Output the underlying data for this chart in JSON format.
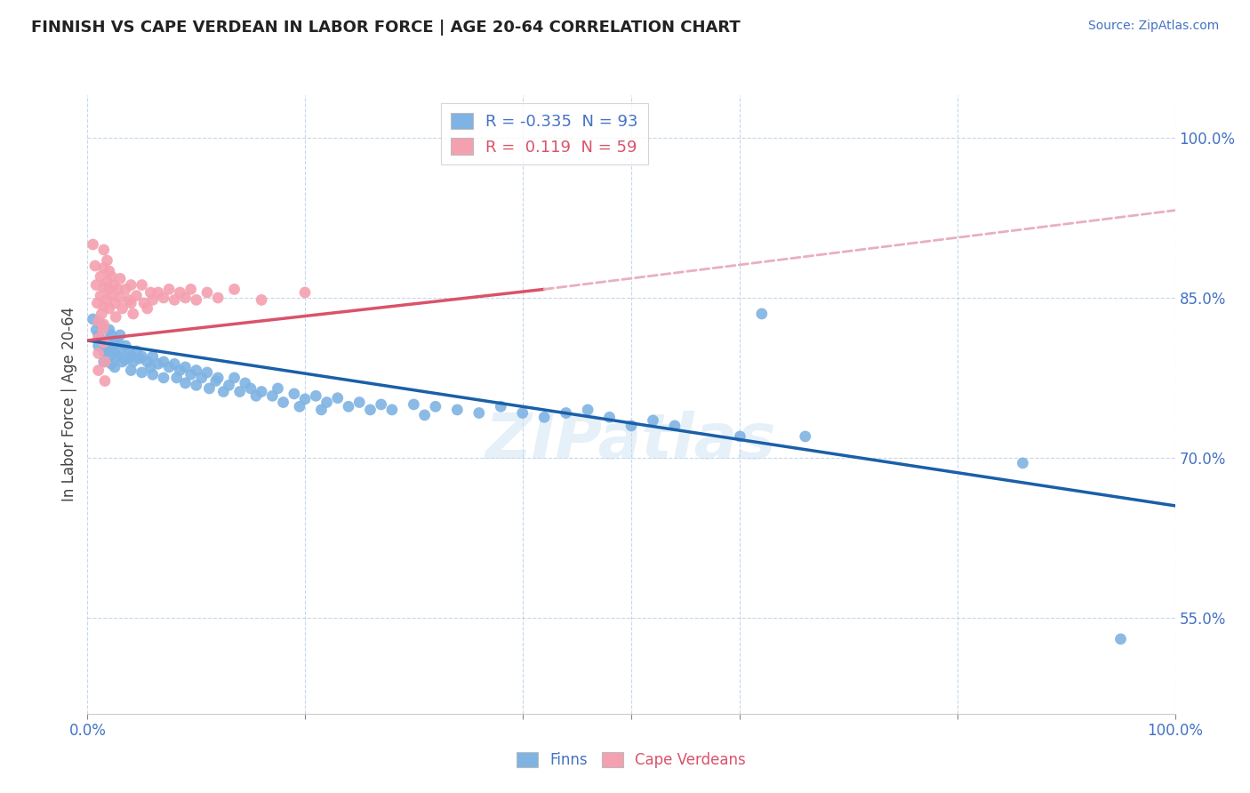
{
  "title": "FINNISH VS CAPE VERDEAN IN LABOR FORCE | AGE 20-64 CORRELATION CHART",
  "source": "Source: ZipAtlas.com",
  "ylabel": "In Labor Force | Age 20-64",
  "xlim": [
    0.0,
    1.0
  ],
  "ylim": [
    0.46,
    1.04
  ],
  "ytick_positions": [
    0.55,
    0.7,
    0.85,
    1.0
  ],
  "ytick_labels": [
    "55.0%",
    "70.0%",
    "85.0%",
    "100.0%"
  ],
  "finn_color": "#7eb3e3",
  "cape_color": "#f4a0b0",
  "finn_line_color": "#1a5fa8",
  "cape_line_color": "#d9536a",
  "cape_dashed_color": "#e8b0be",
  "r_finn": -0.335,
  "n_finn": 93,
  "r_cape": 0.119,
  "n_cape": 59,
  "watermark": "ZIPatlas",
  "finn_scatter": [
    [
      0.005,
      0.83
    ],
    [
      0.008,
      0.82
    ],
    [
      0.01,
      0.815
    ],
    [
      0.01,
      0.805
    ],
    [
      0.012,
      0.825
    ],
    [
      0.015,
      0.8
    ],
    [
      0.015,
      0.79
    ],
    [
      0.018,
      0.81
    ],
    [
      0.018,
      0.8
    ],
    [
      0.02,
      0.82
    ],
    [
      0.02,
      0.805
    ],
    [
      0.02,
      0.795
    ],
    [
      0.022,
      0.815
    ],
    [
      0.022,
      0.8
    ],
    [
      0.022,
      0.788
    ],
    [
      0.025,
      0.81
    ],
    [
      0.025,
      0.798
    ],
    [
      0.025,
      0.785
    ],
    [
      0.028,
      0.808
    ],
    [
      0.028,
      0.795
    ],
    [
      0.03,
      0.815
    ],
    [
      0.03,
      0.8
    ],
    [
      0.032,
      0.79
    ],
    [
      0.035,
      0.805
    ],
    [
      0.035,
      0.792
    ],
    [
      0.038,
      0.8
    ],
    [
      0.04,
      0.795
    ],
    [
      0.04,
      0.782
    ],
    [
      0.042,
      0.79
    ],
    [
      0.045,
      0.8
    ],
    [
      0.048,
      0.793
    ],
    [
      0.05,
      0.795
    ],
    [
      0.05,
      0.78
    ],
    [
      0.055,
      0.79
    ],
    [
      0.058,
      0.785
    ],
    [
      0.06,
      0.795
    ],
    [
      0.06,
      0.778
    ],
    [
      0.065,
      0.788
    ],
    [
      0.07,
      0.79
    ],
    [
      0.07,
      0.775
    ],
    [
      0.075,
      0.785
    ],
    [
      0.08,
      0.788
    ],
    [
      0.082,
      0.775
    ],
    [
      0.085,
      0.782
    ],
    [
      0.09,
      0.785
    ],
    [
      0.09,
      0.77
    ],
    [
      0.095,
      0.778
    ],
    [
      0.1,
      0.782
    ],
    [
      0.1,
      0.768
    ],
    [
      0.105,
      0.775
    ],
    [
      0.11,
      0.78
    ],
    [
      0.112,
      0.765
    ],
    [
      0.118,
      0.772
    ],
    [
      0.12,
      0.775
    ],
    [
      0.125,
      0.762
    ],
    [
      0.13,
      0.768
    ],
    [
      0.135,
      0.775
    ],
    [
      0.14,
      0.762
    ],
    [
      0.145,
      0.77
    ],
    [
      0.15,
      0.765
    ],
    [
      0.155,
      0.758
    ],
    [
      0.16,
      0.762
    ],
    [
      0.17,
      0.758
    ],
    [
      0.175,
      0.765
    ],
    [
      0.18,
      0.752
    ],
    [
      0.19,
      0.76
    ],
    [
      0.195,
      0.748
    ],
    [
      0.2,
      0.755
    ],
    [
      0.21,
      0.758
    ],
    [
      0.215,
      0.745
    ],
    [
      0.22,
      0.752
    ],
    [
      0.23,
      0.756
    ],
    [
      0.24,
      0.748
    ],
    [
      0.25,
      0.752
    ],
    [
      0.26,
      0.745
    ],
    [
      0.27,
      0.75
    ],
    [
      0.28,
      0.745
    ],
    [
      0.3,
      0.75
    ],
    [
      0.31,
      0.74
    ],
    [
      0.32,
      0.748
    ],
    [
      0.34,
      0.745
    ],
    [
      0.36,
      0.742
    ],
    [
      0.38,
      0.748
    ],
    [
      0.4,
      0.742
    ],
    [
      0.42,
      0.738
    ],
    [
      0.44,
      0.742
    ],
    [
      0.46,
      0.745
    ],
    [
      0.48,
      0.738
    ],
    [
      0.5,
      0.73
    ],
    [
      0.52,
      0.735
    ],
    [
      0.54,
      0.73
    ],
    [
      0.6,
      0.72
    ],
    [
      0.62,
      0.835
    ],
    [
      0.66,
      0.72
    ],
    [
      0.86,
      0.695
    ],
    [
      0.95,
      0.53
    ]
  ],
  "cape_scatter": [
    [
      0.005,
      0.9
    ],
    [
      0.007,
      0.88
    ],
    [
      0.008,
      0.862
    ],
    [
      0.009,
      0.845
    ],
    [
      0.01,
      0.828
    ],
    [
      0.01,
      0.812
    ],
    [
      0.01,
      0.798
    ],
    [
      0.01,
      0.782
    ],
    [
      0.012,
      0.87
    ],
    [
      0.012,
      0.852
    ],
    [
      0.013,
      0.835
    ],
    [
      0.014,
      0.82
    ],
    [
      0.015,
      0.895
    ],
    [
      0.015,
      0.878
    ],
    [
      0.015,
      0.86
    ],
    [
      0.015,
      0.842
    ],
    [
      0.015,
      0.825
    ],
    [
      0.015,
      0.808
    ],
    [
      0.016,
      0.79
    ],
    [
      0.016,
      0.772
    ],
    [
      0.018,
      0.885
    ],
    [
      0.018,
      0.865
    ],
    [
      0.018,
      0.848
    ],
    [
      0.02,
      0.875
    ],
    [
      0.02,
      0.858
    ],
    [
      0.02,
      0.84
    ],
    [
      0.022,
      0.87
    ],
    [
      0.022,
      0.852
    ],
    [
      0.024,
      0.862
    ],
    [
      0.025,
      0.845
    ],
    [
      0.026,
      0.832
    ],
    [
      0.028,
      0.858
    ],
    [
      0.03,
      0.868
    ],
    [
      0.03,
      0.85
    ],
    [
      0.032,
      0.84
    ],
    [
      0.035,
      0.858
    ],
    [
      0.038,
      0.848
    ],
    [
      0.04,
      0.862
    ],
    [
      0.04,
      0.845
    ],
    [
      0.042,
      0.835
    ],
    [
      0.045,
      0.852
    ],
    [
      0.05,
      0.862
    ],
    [
      0.052,
      0.845
    ],
    [
      0.055,
      0.84
    ],
    [
      0.058,
      0.855
    ],
    [
      0.06,
      0.848
    ],
    [
      0.065,
      0.855
    ],
    [
      0.07,
      0.85
    ],
    [
      0.075,
      0.858
    ],
    [
      0.08,
      0.848
    ],
    [
      0.085,
      0.855
    ],
    [
      0.09,
      0.85
    ],
    [
      0.095,
      0.858
    ],
    [
      0.1,
      0.848
    ],
    [
      0.11,
      0.855
    ],
    [
      0.12,
      0.85
    ],
    [
      0.135,
      0.858
    ],
    [
      0.16,
      0.848
    ],
    [
      0.2,
      0.855
    ]
  ],
  "finn_trendline": [
    [
      0.0,
      0.81
    ],
    [
      1.0,
      0.655
    ]
  ],
  "cape_solid_line": [
    [
      0.0,
      0.81
    ],
    [
      0.42,
      0.858
    ]
  ],
  "cape_dashed_line": [
    [
      0.42,
      0.858
    ],
    [
      1.0,
      0.932
    ]
  ]
}
